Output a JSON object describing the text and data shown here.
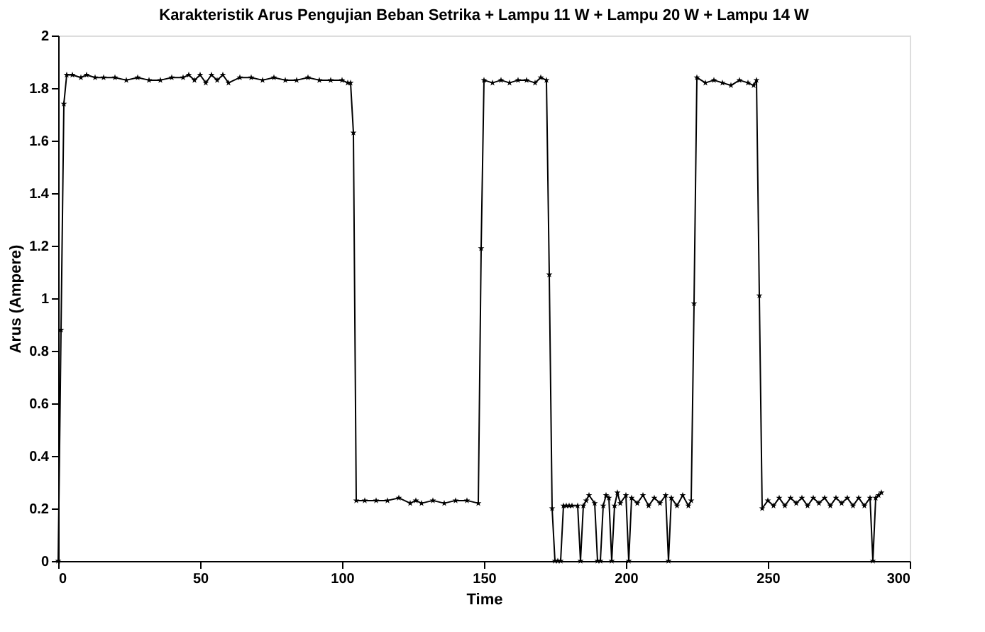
{
  "chart_data": {
    "type": "line",
    "title": "Karakteristik Arus Pengujian Beban Setrika + Lampu 11 W + Lampu 20 W + Lampu 14 W",
    "xlabel": "Time",
    "ylabel": "Arus (Ampere)",
    "x": [
      0,
      1,
      2,
      3,
      5,
      8,
      10,
      13,
      16,
      20,
      24,
      28,
      32,
      36,
      40,
      44,
      46,
      48,
      50,
      52,
      54,
      56,
      58,
      60,
      64,
      68,
      72,
      76,
      80,
      84,
      88,
      92,
      96,
      100,
      102,
      103,
      104,
      105,
      108,
      112,
      116,
      120,
      124,
      126,
      128,
      132,
      136,
      140,
      144,
      148,
      149,
      150,
      153,
      156,
      159,
      162,
      165,
      168,
      170,
      172,
      173,
      174,
      175,
      176,
      177,
      178,
      179,
      180,
      181,
      183,
      184,
      185,
      186,
      187,
      189,
      190,
      191,
      192,
      193,
      194,
      195,
      196,
      197,
      198,
      200,
      201,
      202,
      204,
      206,
      208,
      210,
      212,
      214,
      215,
      216,
      218,
      220,
      222,
      223,
      224,
      225,
      228,
      231,
      234,
      237,
      240,
      243,
      245,
      246,
      247,
      248,
      250,
      252,
      254,
      256,
      258,
      260,
      262,
      264,
      266,
      268,
      270,
      272,
      274,
      276,
      278,
      280,
      282,
      284,
      286,
      287,
      288,
      289,
      290
    ],
    "series": [
      {
        "color": "#000000",
        "values": [
          0,
          0.88,
          1.74,
          1.85,
          1.85,
          1.84,
          1.85,
          1.84,
          1.84,
          1.84,
          1.83,
          1.84,
          1.83,
          1.83,
          1.84,
          1.84,
          1.85,
          1.83,
          1.85,
          1.82,
          1.85,
          1.83,
          1.85,
          1.82,
          1.84,
          1.84,
          1.83,
          1.84,
          1.83,
          1.83,
          1.84,
          1.83,
          1.83,
          1.83,
          1.82,
          1.82,
          1.63,
          0.23,
          0.23,
          0.23,
          0.23,
          0.24,
          0.22,
          0.23,
          0.22,
          0.23,
          0.22,
          0.23,
          0.23,
          0.22,
          1.19,
          1.83,
          1.82,
          1.83,
          1.82,
          1.83,
          1.83,
          1.82,
          1.84,
          1.83,
          1.09,
          0.2,
          0,
          0,
          0,
          0.21,
          0.21,
          0.21,
          0.21,
          0.21,
          0,
          0.21,
          0.23,
          0.25,
          0.22,
          0,
          0,
          0.21,
          0.25,
          0.24,
          0,
          0.21,
          0.26,
          0.22,
          0.25,
          0,
          0.24,
          0.22,
          0.25,
          0.21,
          0.24,
          0.22,
          0.25,
          0,
          0.24,
          0.21,
          0.25,
          0.21,
          0.23,
          0.98,
          1.84,
          1.82,
          1.83,
          1.82,
          1.81,
          1.83,
          1.82,
          1.81,
          1.83,
          1.01,
          0.2,
          0.23,
          0.21,
          0.24,
          0.21,
          0.24,
          0.22,
          0.24,
          0.21,
          0.24,
          0.22,
          0.24,
          0.21,
          0.24,
          0.22,
          0.24,
          0.21,
          0.24,
          0.21,
          0.24,
          0,
          0.24,
          0.25,
          0.26
        ]
      }
    ],
    "xlim": [
      0,
      300
    ],
    "xticks": [
      0,
      50,
      100,
      150,
      200,
      250,
      300
    ],
    "ylim": [
      0,
      2
    ],
    "yticks": [
      0,
      0.2,
      0.4,
      0.6,
      0.8,
      1,
      1.2,
      1.4,
      1.6,
      1.8,
      2
    ],
    "marker": "star",
    "line_style": "solid",
    "grid": false
  }
}
